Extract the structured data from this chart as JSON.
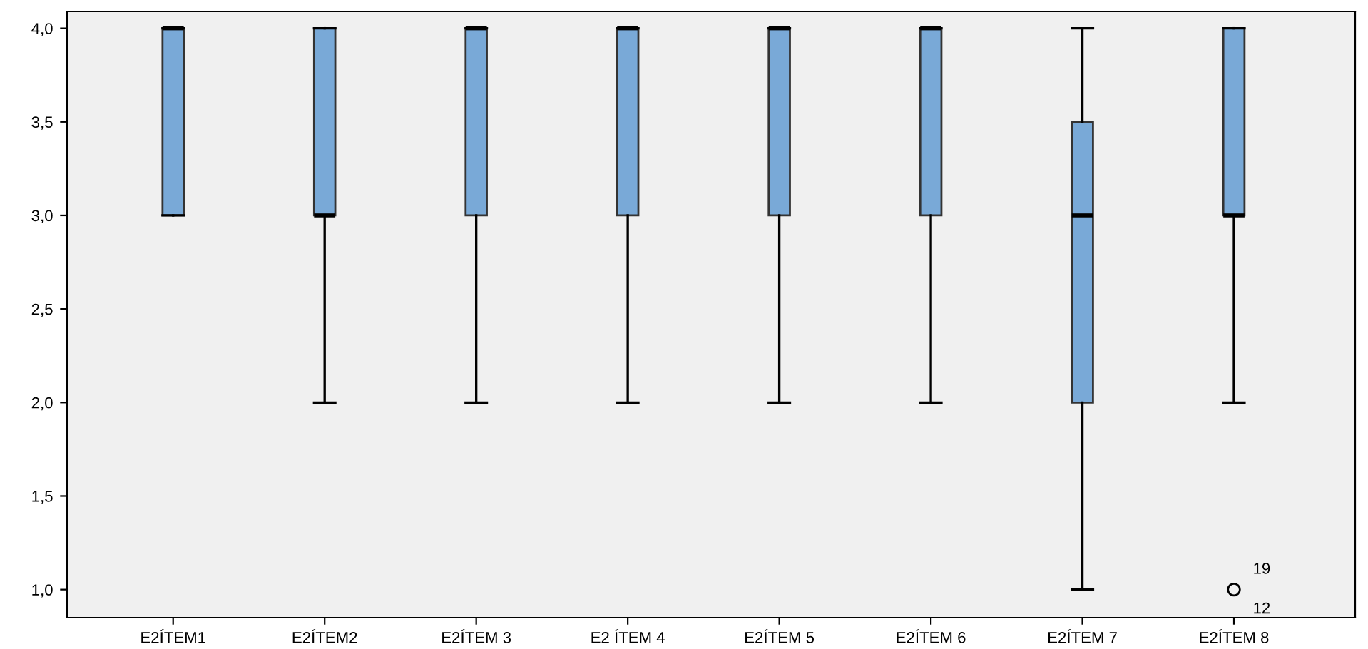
{
  "chart_data": {
    "type": "box",
    "categories": [
      "E2ÍTEM1",
      "E2ÍTEM2",
      "E2ÍTEM 3",
      "E2 ÍTEM 4",
      "E2ÍTEM 5",
      "E2ÍTEM 6",
      "E2ÍTEM 7",
      "E2ÍTEM 8"
    ],
    "color": "#79a9d7",
    "grid": false,
    "boxes": [
      {
        "low": 3,
        "q1": 3,
        "median": 4,
        "q3": 4,
        "high": 4
      },
      {
        "low": 2,
        "q1": 3,
        "median": 3,
        "q3": 4,
        "high": 4
      },
      {
        "low": 2,
        "q1": 3,
        "median": 4,
        "q3": 4,
        "high": 4
      },
      {
        "low": 2,
        "q1": 3,
        "median": 4,
        "q3": 4,
        "high": 4
      },
      {
        "low": 2,
        "q1": 3,
        "median": 4,
        "q3": 4,
        "high": 4
      },
      {
        "low": 2,
        "q1": 3,
        "median": 4,
        "q3": 4,
        "high": 4
      },
      {
        "low": 1,
        "q1": 2,
        "median": 3,
        "q3": 3.5,
        "high": 4
      },
      {
        "low": 2,
        "q1": 3,
        "median": 3,
        "q3": 4,
        "high": 4,
        "outliers": [
          1
        ]
      }
    ],
    "ylim": [
      0.85,
      4.09
    ],
    "yticks": [
      {
        "value": 1,
        "label": "1,0"
      },
      {
        "value": 1.5,
        "label": "1,5"
      },
      {
        "value": 2,
        "label": "2,0"
      },
      {
        "value": 2.5,
        "label": "2,5"
      },
      {
        "value": 3,
        "label": "3,0"
      },
      {
        "value": 3.5,
        "label": "3,5"
      },
      {
        "value": 4,
        "label": "4,0"
      }
    ],
    "annotations": [
      "19",
      "12"
    ]
  }
}
